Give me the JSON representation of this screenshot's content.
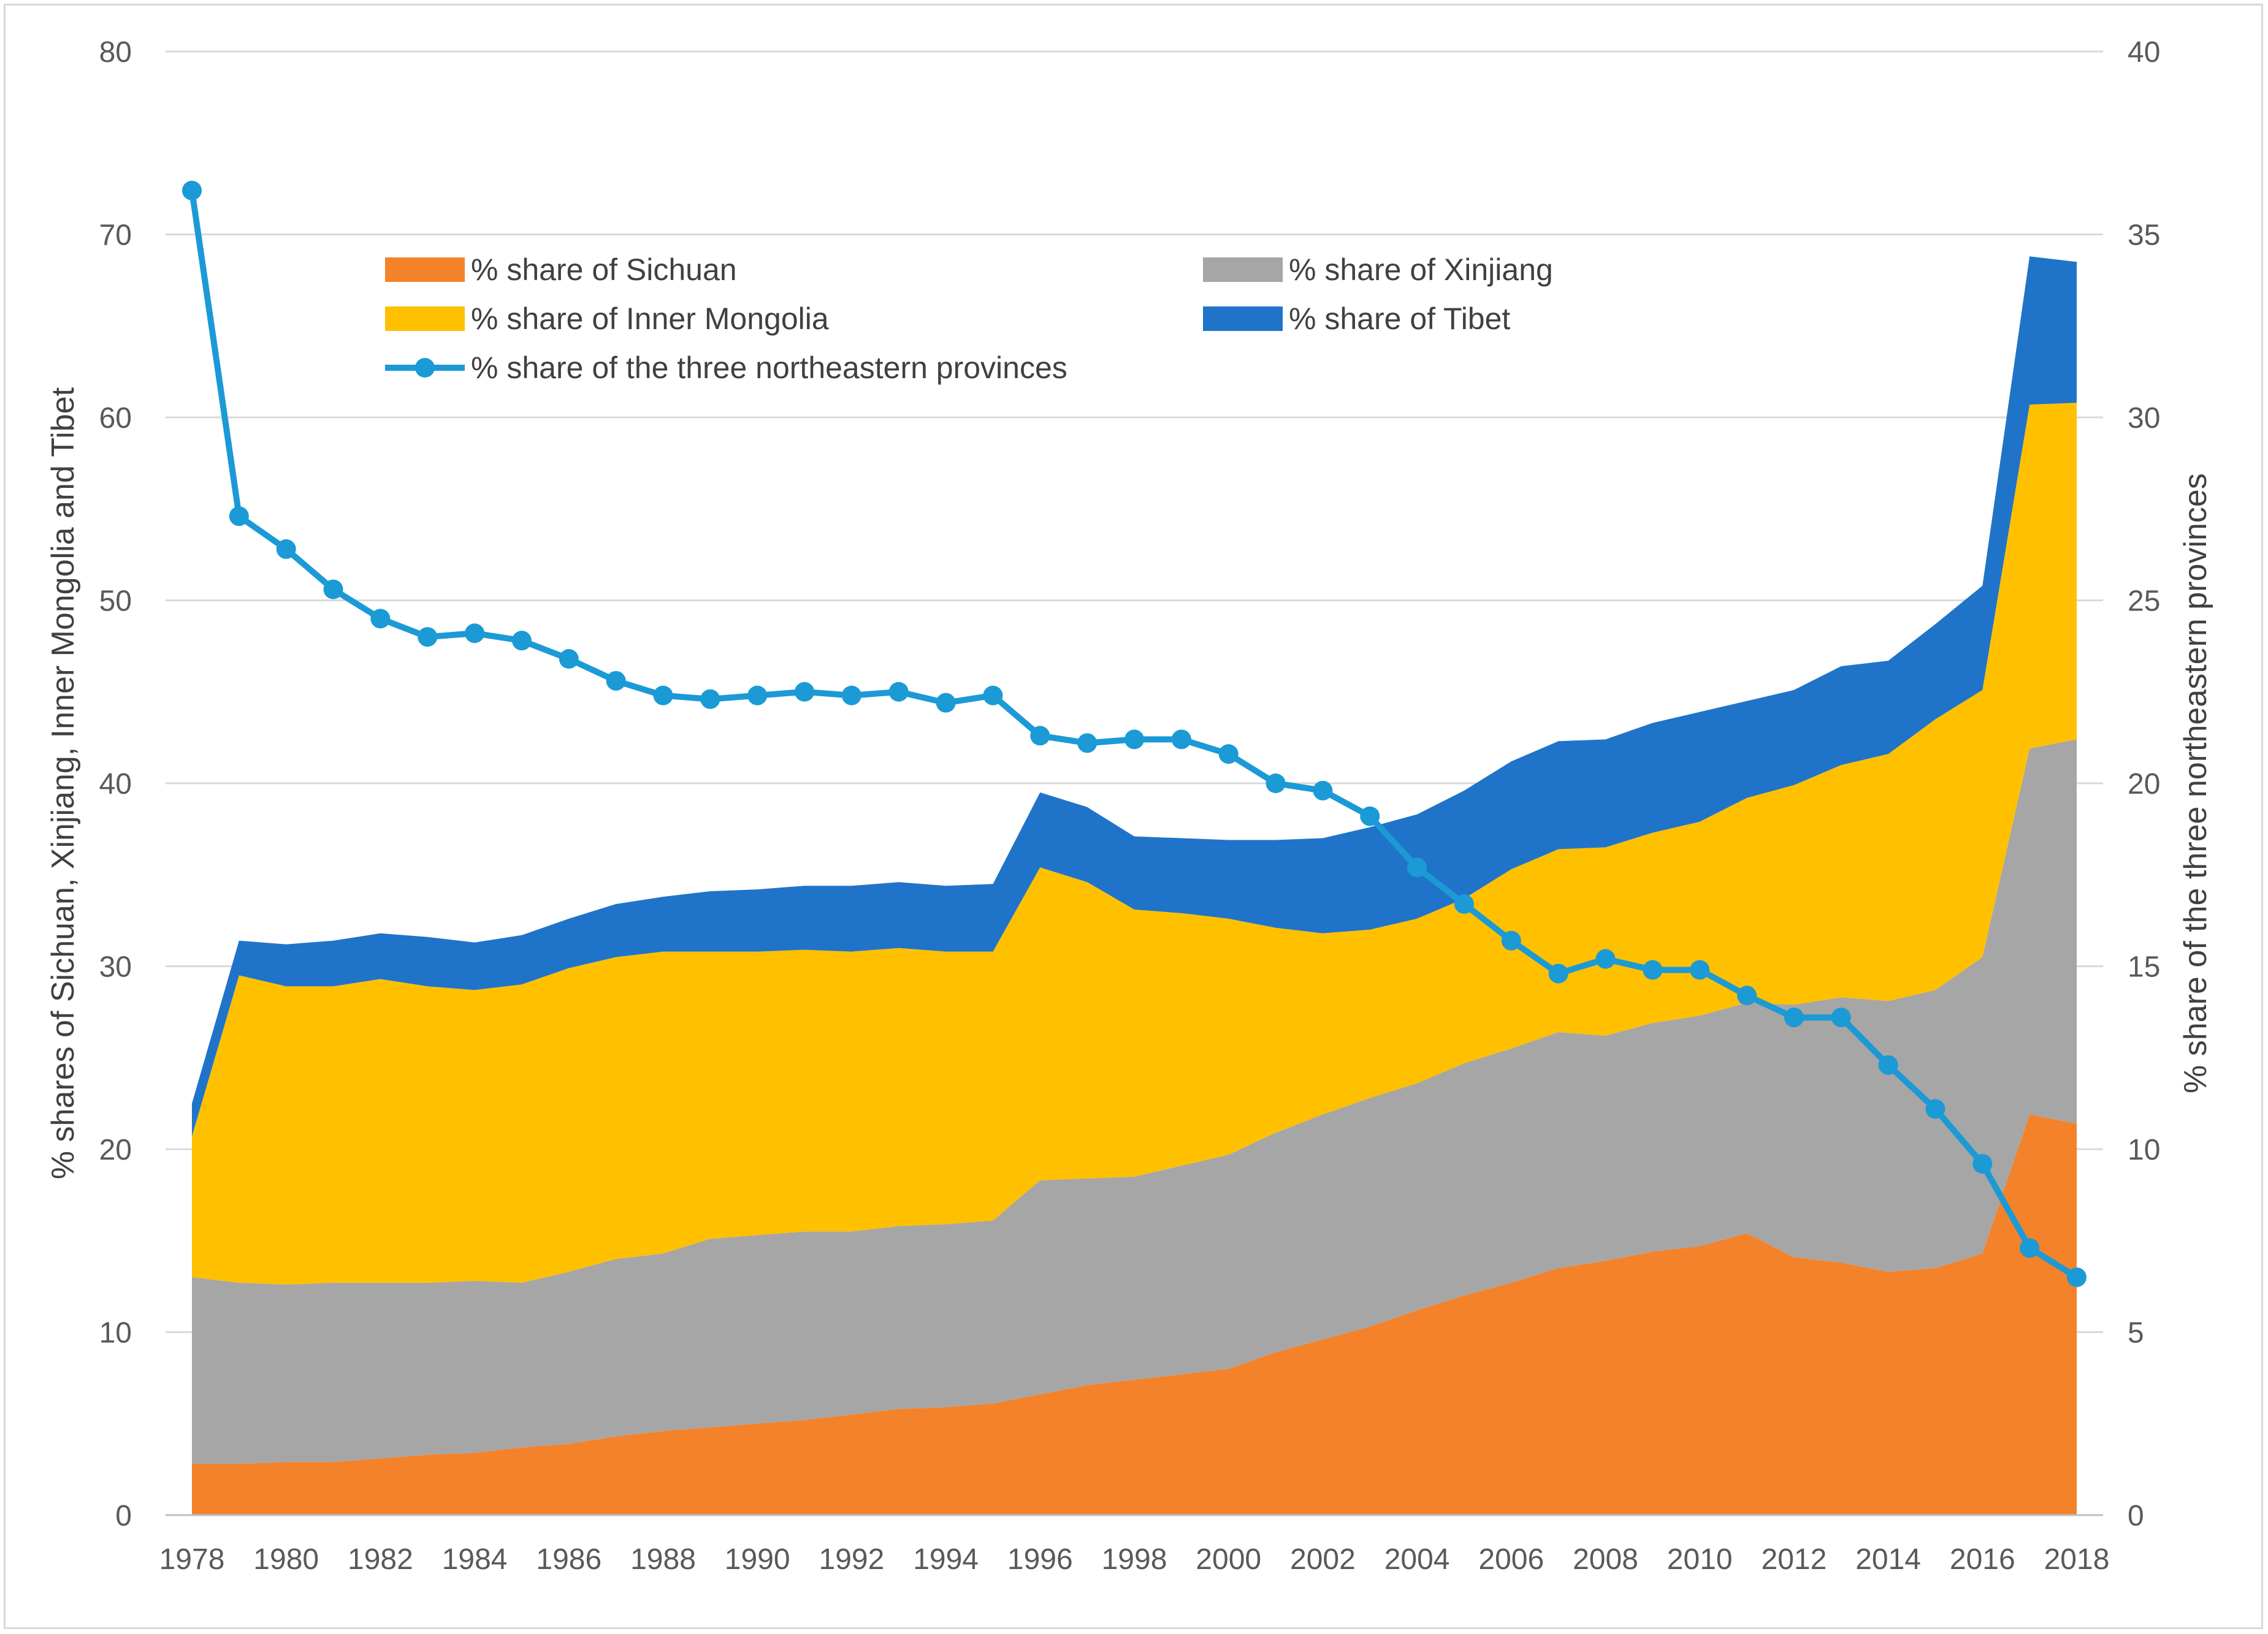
{
  "chart_data": {
    "type": "area",
    "title": "",
    "xlabel": "",
    "ylabel": "% shares of Sichuan, Xinjiang, Inner Mongolia and Tibet",
    "ylabel_right": "% share of the three northeastern provinces",
    "ylim": [
      0,
      80
    ],
    "ylim_right": [
      0,
      40
    ],
    "y_ticks": [
      "0",
      "10",
      "20",
      "30",
      "40",
      "50",
      "60",
      "70",
      "80"
    ],
    "y_ticks_right": [
      "0",
      "5",
      "10",
      "15",
      "20",
      "25",
      "30",
      "35",
      "40"
    ],
    "grid": true,
    "legend_position": "upper-left",
    "x": [
      1978,
      1979,
      1980,
      1981,
      1982,
      1983,
      1984,
      1985,
      1986,
      1987,
      1988,
      1989,
      1990,
      1991,
      1992,
      1993,
      1994,
      1995,
      1996,
      1997,
      1998,
      1999,
      2000,
      2001,
      2002,
      2003,
      2004,
      2005,
      2006,
      2007,
      2008,
      2009,
      2010,
      2011,
      2012,
      2013,
      2014,
      2015,
      2016,
      2017,
      2018
    ],
    "x_tick_labels": [
      "1978",
      "1980",
      "1982",
      "1984",
      "1986",
      "1988",
      "1990",
      "1992",
      "1994",
      "1996",
      "1998",
      "2000",
      "2002",
      "2004",
      "2006",
      "2008",
      "2010",
      "2012",
      "2014",
      "2016",
      "2018"
    ],
    "stacked_series": [
      {
        "name": "% share of Sichuan",
        "color": "#f4822a",
        "values": [
          2.8,
          2.8,
          2.9,
          2.9,
          3.1,
          3.3,
          3.4,
          3.7,
          3.9,
          4.3,
          4.6,
          4.8,
          5.0,
          5.2,
          5.5,
          5.8,
          5.9,
          6.1,
          6.6,
          7.1,
          7.4,
          7.7,
          8.0,
          8.9,
          9.6,
          10.3,
          11.2,
          12.0,
          12.7,
          13.5,
          13.9,
          14.4,
          14.7,
          15.4,
          14.1,
          13.8,
          13.3,
          13.5,
          14.3,
          21.9,
          21.4
        ]
      },
      {
        "name": "% share of Xinjiang",
        "color": "#a6a6a6",
        "values": [
          10.2,
          9.9,
          9.7,
          9.8,
          9.6,
          9.4,
          9.4,
          9.0,
          9.4,
          9.7,
          9.7,
          10.3,
          10.3,
          10.3,
          10.0,
          10.0,
          10.0,
          10.0,
          11.7,
          11.3,
          11.1,
          11.4,
          11.7,
          12.0,
          12.3,
          12.5,
          12.4,
          12.7,
          12.8,
          12.9,
          12.3,
          12.5,
          12.6,
          12.6,
          13.8,
          14.5,
          14.8,
          15.2,
          16.2,
          20.0,
          21.0
        ]
      },
      {
        "name": "% share of Inner Mongolia",
        "color": "#ffc000",
        "values": [
          7.7,
          16.8,
          16.3,
          16.2,
          16.6,
          16.2,
          15.9,
          16.3,
          16.6,
          16.5,
          16.5,
          15.7,
          15.5,
          15.4,
          15.3,
          15.2,
          14.9,
          14.7,
          17.1,
          16.2,
          14.6,
          13.8,
          12.9,
          11.2,
          9.9,
          9.2,
          9.0,
          9.0,
          9.8,
          10.0,
          10.3,
          10.4,
          10.6,
          11.2,
          12.0,
          12.7,
          13.5,
          14.8,
          14.6,
          18.8,
          18.4
        ]
      },
      {
        "name": "% share of Tibet",
        "color": "#1f74c9",
        "values": [
          1.8,
          1.9,
          2.3,
          2.5,
          2.5,
          2.7,
          2.6,
          2.7,
          2.7,
          2.9,
          3.0,
          3.3,
          3.4,
          3.5,
          3.6,
          3.6,
          3.6,
          3.7,
          4.1,
          4.1,
          4.0,
          4.1,
          4.3,
          4.8,
          5.2,
          5.6,
          5.7,
          5.9,
          5.9,
          5.9,
          5.9,
          6.0,
          6.0,
          5.3,
          5.2,
          5.4,
          5.1,
          5.2,
          5.7,
          8.1,
          7.7
        ]
      }
    ],
    "line_series": {
      "name": "% share of the three northeastern provinces",
      "axis": "right",
      "color": "#1b9ad6",
      "values": [
        36.2,
        27.3,
        26.4,
        25.3,
        24.5,
        24.0,
        24.1,
        23.9,
        23.4,
        22.8,
        22.4,
        22.3,
        22.4,
        22.5,
        22.4,
        22.5,
        22.2,
        22.4,
        21.3,
        21.1,
        21.2,
        21.2,
        20.8,
        20.0,
        19.8,
        19.1,
        17.7,
        16.7,
        15.7,
        14.8,
        15.2,
        14.9,
        14.9,
        14.2,
        13.6,
        13.6,
        12.3,
        11.1,
        9.6,
        7.3,
        6.5
      ]
    }
  }
}
